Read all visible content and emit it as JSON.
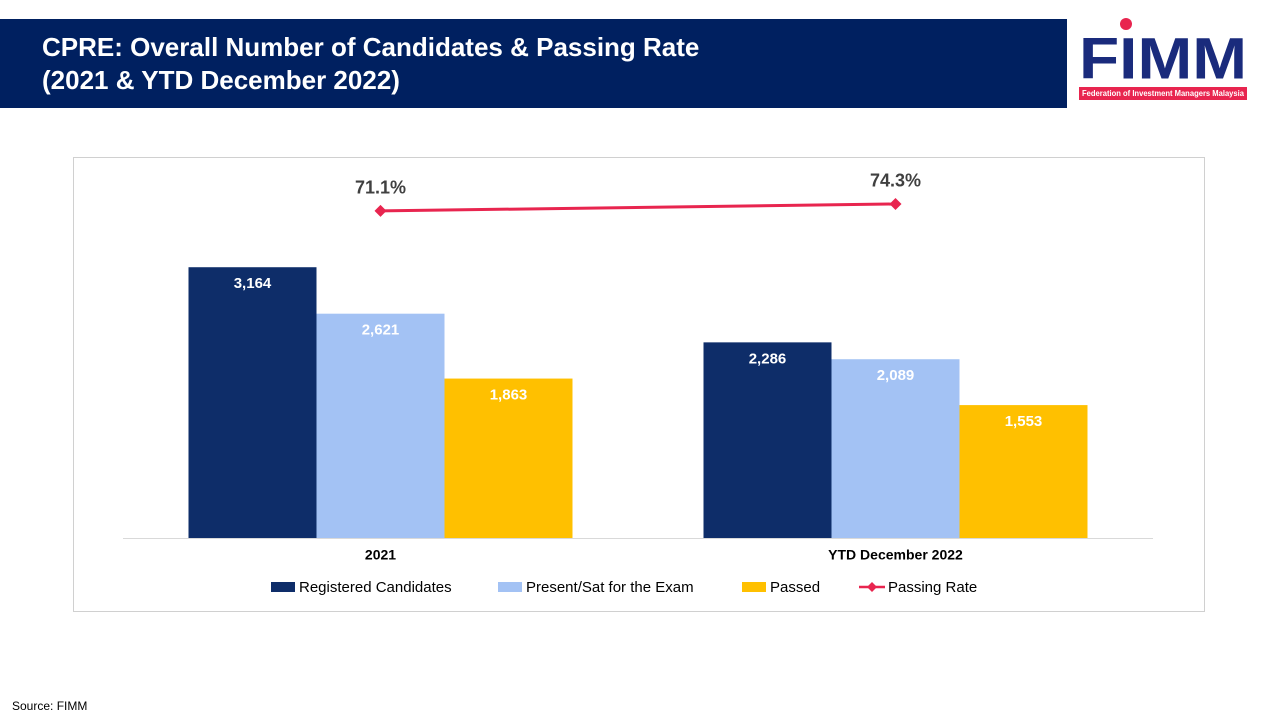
{
  "header": {
    "title_lines": [
      "CPRE: Overall Number of Candidates & Passing Rate",
      "(2021 & YTD December 2022)"
    ]
  },
  "logo": {
    "name": "FIMM",
    "tagline": "Federation of Investment Managers Malaysia"
  },
  "source": "Source: FIMM",
  "chart_data": {
    "type": "bar",
    "categories": [
      "2021",
      "YTD December 2022"
    ],
    "series": [
      {
        "name": "Registered Candidates",
        "color": "#0e2d69",
        "values": [
          3164,
          2286
        ],
        "value_labels": [
          "3,164",
          "2,286"
        ]
      },
      {
        "name": "Present/Sat for the Exam",
        "color": "#a3c2f4",
        "values": [
          2621,
          2089
        ],
        "value_labels": [
          "2,621",
          "2,089"
        ]
      },
      {
        "name": "Passed",
        "color": "#ffc000",
        "values": [
          1863,
          1553
        ],
        "value_labels": [
          "1,863",
          "1,553"
        ]
      },
      {
        "name": "Passing Rate",
        "type": "line",
        "axis": "y2",
        "color": "#e8254f",
        "values": [
          71.1,
          74.3
        ],
        "value_labels": [
          "71.1%",
          "74.3%"
        ]
      }
    ],
    "ylim": [
      0,
      4300
    ],
    "y2lim": [
      -80,
      90
    ],
    "grid": false,
    "legend": "bottom"
  }
}
